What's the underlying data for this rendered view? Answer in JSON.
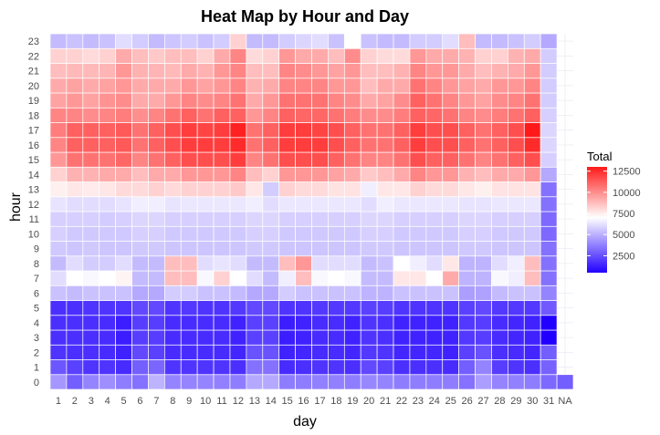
{
  "chart_data": {
    "type": "heatmap",
    "title": "Heat Map by Hour and Day",
    "xlabel": "day",
    "ylabel": "hour",
    "x_categories": [
      "1",
      "2",
      "3",
      "4",
      "5",
      "6",
      "7",
      "8",
      "9",
      "10",
      "11",
      "12",
      "13",
      "14",
      "15",
      "16",
      "17",
      "18",
      "19",
      "20",
      "21",
      "22",
      "23",
      "24",
      "25",
      "26",
      "27",
      "28",
      "29",
      "30",
      "31",
      "NA"
    ],
    "y_categories": [
      "0",
      "1",
      "2",
      "3",
      "4",
      "5",
      "6",
      "7",
      "8",
      "9",
      "10",
      "11",
      "12",
      "13",
      "14",
      "15",
      "16",
      "17",
      "18",
      "19",
      "20",
      "21",
      "22",
      "23"
    ],
    "color_scale": {
      "low": "#2200ff",
      "mid": "#ffffff",
      "high": "#ff1a1a",
      "midpoint": 7000,
      "min": 500,
      "max": 13000
    },
    "legend": {
      "title": "Total",
      "ticks": [
        2500,
        5000,
        7500,
        10000,
        12500
      ],
      "position": "right"
    },
    "grid": true,
    "values_note": "values[day_index][hour_index], Total estimated from color; NA column only has hour 0",
    "values": [
      [
        4000,
        2300,
        1500,
        1400,
        1400,
        1400,
        5200,
        6000,
        5000,
        5400,
        5600,
        5600,
        6200,
        7300,
        8000,
        9500,
        10000,
        10200,
        10000,
        9200,
        9000,
        8500,
        8000,
        5000
      ],
      [
        2500,
        1800,
        1400,
        1400,
        1400,
        1400,
        5000,
        7000,
        6000,
        5300,
        5400,
        5600,
        6000,
        7500,
        8800,
        10500,
        11000,
        11000,
        10000,
        9500,
        9200,
        8600,
        8000,
        5200
      ],
      [
        3500,
        1500,
        1400,
        1400,
        1400,
        1500,
        5200,
        6800,
        5500,
        5400,
        5400,
        5600,
        6000,
        7400,
        8800,
        10500,
        11000,
        11000,
        9800,
        9200,
        9000,
        8600,
        7800,
        5000
      ],
      [
        3800,
        1500,
        1300,
        1300,
        1300,
        1500,
        5200,
        7000,
        5500,
        5300,
        5400,
        5500,
        6000,
        7500,
        9000,
        10500,
        11000,
        11000,
        10000,
        9600,
        9200,
        8700,
        8000,
        5200
      ],
      [
        3300,
        1300,
        1100,
        1000,
        1000,
        1500,
        5200,
        7200,
        6000,
        5300,
        5400,
        5600,
        6200,
        7800,
        9000,
        10800,
        11200,
        11200,
        10200,
        9800,
        9500,
        9500,
        9000,
        6000
      ],
      [
        3000,
        2500,
        2000,
        1700,
        1700,
        2000,
        4500,
        5000,
        5000,
        5400,
        5600,
        5800,
        6500,
        7800,
        8500,
        10000,
        10500,
        10500,
        9700,
        9000,
        9000,
        8800,
        8500,
        5500
      ],
      [
        4800,
        2700,
        1800,
        1700,
        1700,
        2000,
        4500,
        5000,
        5000,
        5400,
        5600,
        5800,
        6500,
        8000,
        9000,
        10500,
        11000,
        11000,
        10000,
        9000,
        9000,
        8700,
        8200,
        5000
      ],
      [
        3500,
        1500,
        1300,
        1300,
        1300,
        1500,
        5500,
        8500,
        8500,
        5300,
        5400,
        5600,
        6200,
        7800,
        9000,
        11000,
        11500,
        11500,
        10500,
        9500,
        9000,
        8600,
        8500,
        5300
      ],
      [
        3500,
        1500,
        1300,
        1300,
        1300,
        1600,
        5500,
        8500,
        8500,
        5300,
        5400,
        5600,
        6300,
        8000,
        9500,
        11500,
        12000,
        12000,
        11000,
        10000,
        9500,
        9000,
        8500,
        5500
      ],
      [
        3500,
        1500,
        1300,
        1300,
        1300,
        1500,
        5200,
        6800,
        6000,
        5300,
        5400,
        5600,
        6300,
        8000,
        9500,
        11500,
        12000,
        11800,
        10500,
        9800,
        9200,
        8800,
        8000,
        5200
      ],
      [
        3400,
        1500,
        1300,
        1300,
        1300,
        1500,
        5200,
        8000,
        6200,
        5300,
        5400,
        5600,
        6300,
        8000,
        9500,
        11500,
        12000,
        12000,
        11000,
        10000,
        9500,
        9500,
        9000,
        5500
      ],
      [
        3300,
        1400,
        1200,
        1100,
        1100,
        1600,
        5000,
        7000,
        6000,
        5300,
        5400,
        5600,
        6300,
        8200,
        10000,
        12000,
        12500,
        12800,
        11000,
        10500,
        10000,
        10000,
        10000,
        8000
      ],
      [
        4500,
        3000,
        2200,
        1800,
        1800,
        2000,
        4500,
        6000,
        5000,
        5400,
        5600,
        5800,
        6500,
        7500,
        8500,
        10000,
        10500,
        10500,
        9500,
        9000,
        8800,
        8500,
        7800,
        5000
      ],
      [
        4500,
        3000,
        2200,
        1800,
        1800,
        2000,
        4500,
        5000,
        5000,
        5400,
        5600,
        5800,
        6000,
        5500,
        8000,
        10500,
        11000,
        11000,
        10000,
        9500,
        9000,
        8500,
        8000,
        5000
      ],
      [
        3300,
        1300,
        1100,
        1000,
        1000,
        1500,
        5500,
        6500,
        8500,
        5300,
        5400,
        5600,
        6300,
        8000,
        9500,
        11500,
        12000,
        12000,
        11000,
        10500,
        10000,
        10000,
        9500,
        5500
      ],
      [
        3300,
        1400,
        1200,
        1100,
        1100,
        1500,
        5200,
        8500,
        9500,
        5300,
        5400,
        5600,
        6300,
        7800,
        9500,
        11500,
        12000,
        12000,
        10800,
        10500,
        10000,
        9800,
        9000,
        5800
      ],
      [
        3400,
        1500,
        1300,
        1300,
        1300,
        1600,
        5200,
        6800,
        6000,
        5300,
        5400,
        5600,
        6300,
        7800,
        9500,
        11500,
        12000,
        11800,
        10800,
        10500,
        10000,
        9500,
        9000,
        6000
      ],
      [
        3400,
        1500,
        1300,
        1300,
        1300,
        1600,
        5200,
        7000,
        6000,
        5300,
        5400,
        5600,
        6300,
        7600,
        9200,
        11000,
        11500,
        11500,
        10500,
        10000,
        9500,
        9200,
        8500,
        5200
      ],
      [
        3300,
        1400,
        1200,
        1100,
        1100,
        1600,
        5200,
        6800,
        6000,
        5300,
        5400,
        5600,
        6300,
        7600,
        9000,
        10500,
        11000,
        11000,
        10200,
        9800,
        9500,
        9500,
        9800,
        7000
      ],
      [
        3600,
        2000,
        1600,
        1500,
        1500,
        1800,
        4800,
        5000,
        5000,
        5400,
        5600,
        5800,
        6000,
        6500,
        8200,
        10000,
        10500,
        10500,
        9800,
        9000,
        8500,
        8500,
        8000,
        5200
      ],
      [
        3500,
        1800,
        1500,
        1400,
        1400,
        1700,
        4800,
        5000,
        5200,
        5400,
        5600,
        5800,
        6500,
        7500,
        8500,
        10000,
        10500,
        10500,
        9800,
        9200,
        9000,
        8500,
        7800,
        5000
      ],
      [
        3300,
        1400,
        1200,
        1100,
        1100,
        1500,
        5200,
        7500,
        7000,
        5300,
        5400,
        5600,
        6300,
        7500,
        9000,
        10500,
        11000,
        11000,
        10200,
        9800,
        9000,
        8800,
        7800,
        5000
      ],
      [
        3300,
        1400,
        1200,
        1100,
        1100,
        1500,
        5200,
        7500,
        6500,
        5300,
        5400,
        5600,
        6300,
        8000,
        10000,
        11500,
        12000,
        12000,
        11000,
        11000,
        10500,
        10000,
        9500,
        5500
      ],
      [
        3300,
        1400,
        1200,
        1100,
        1100,
        1500,
        5200,
        7000,
        6000,
        5300,
        5400,
        5600,
        6300,
        7800,
        9500,
        11000,
        11500,
        11500,
        10800,
        10500,
        10000,
        9500,
        9000,
        5500
      ],
      [
        3300,
        1300,
        1100,
        1100,
        1100,
        1500,
        5200,
        9000,
        7500,
        5300,
        5400,
        5600,
        6300,
        7800,
        9500,
        11000,
        11500,
        11500,
        10500,
        10000,
        9500,
        9500,
        9000,
        6000
      ],
      [
        3000,
        2500,
        1800,
        1600,
        1600,
        1800,
        4200,
        4800,
        4800,
        5400,
        5600,
        5800,
        6200,
        7500,
        8800,
        10500,
        11000,
        11000,
        10000,
        9500,
        9200,
        9000,
        8800,
        8500
      ],
      [
        4200,
        3500,
        2200,
        1700,
        1700,
        2000,
        4300,
        4800,
        4800,
        5400,
        5600,
        5800,
        6200,
        7300,
        8500,
        10000,
        10500,
        10500,
        9800,
        9200,
        9000,
        8500,
        8000,
        5000
      ],
      [
        3500,
        1700,
        1400,
        1300,
        1300,
        1600,
        5000,
        6800,
        6000,
        5300,
        5400,
        5600,
        6300,
        7600,
        9000,
        10500,
        11000,
        11000,
        10200,
        9800,
        9500,
        8800,
        8000,
        5000
      ],
      [
        3400,
        1500,
        1300,
        1200,
        1200,
        1600,
        5200,
        6500,
        6500,
        5300,
        5400,
        5600,
        6300,
        7600,
        9000,
        11000,
        11500,
        11500,
        10500,
        10000,
        9500,
        9000,
        8800,
        5200
      ],
      [
        3300,
        1400,
        1200,
        1100,
        1100,
        1600,
        5200,
        8500,
        8500,
        5300,
        5400,
        5600,
        6300,
        7600,
        9500,
        11500,
        12500,
        13000,
        11000,
        10500,
        10000,
        9500,
        9000,
        5500
      ],
      [
        2800,
        2600,
        2500,
        500,
        500,
        2400,
        3500,
        3000,
        3000,
        3000,
        2800,
        2800,
        3000,
        3000,
        4500,
        5600,
        5800,
        5800,
        5600,
        5500,
        5500,
        5500,
        5500,
        4500
      ],
      [
        2500
      ]
    ]
  }
}
